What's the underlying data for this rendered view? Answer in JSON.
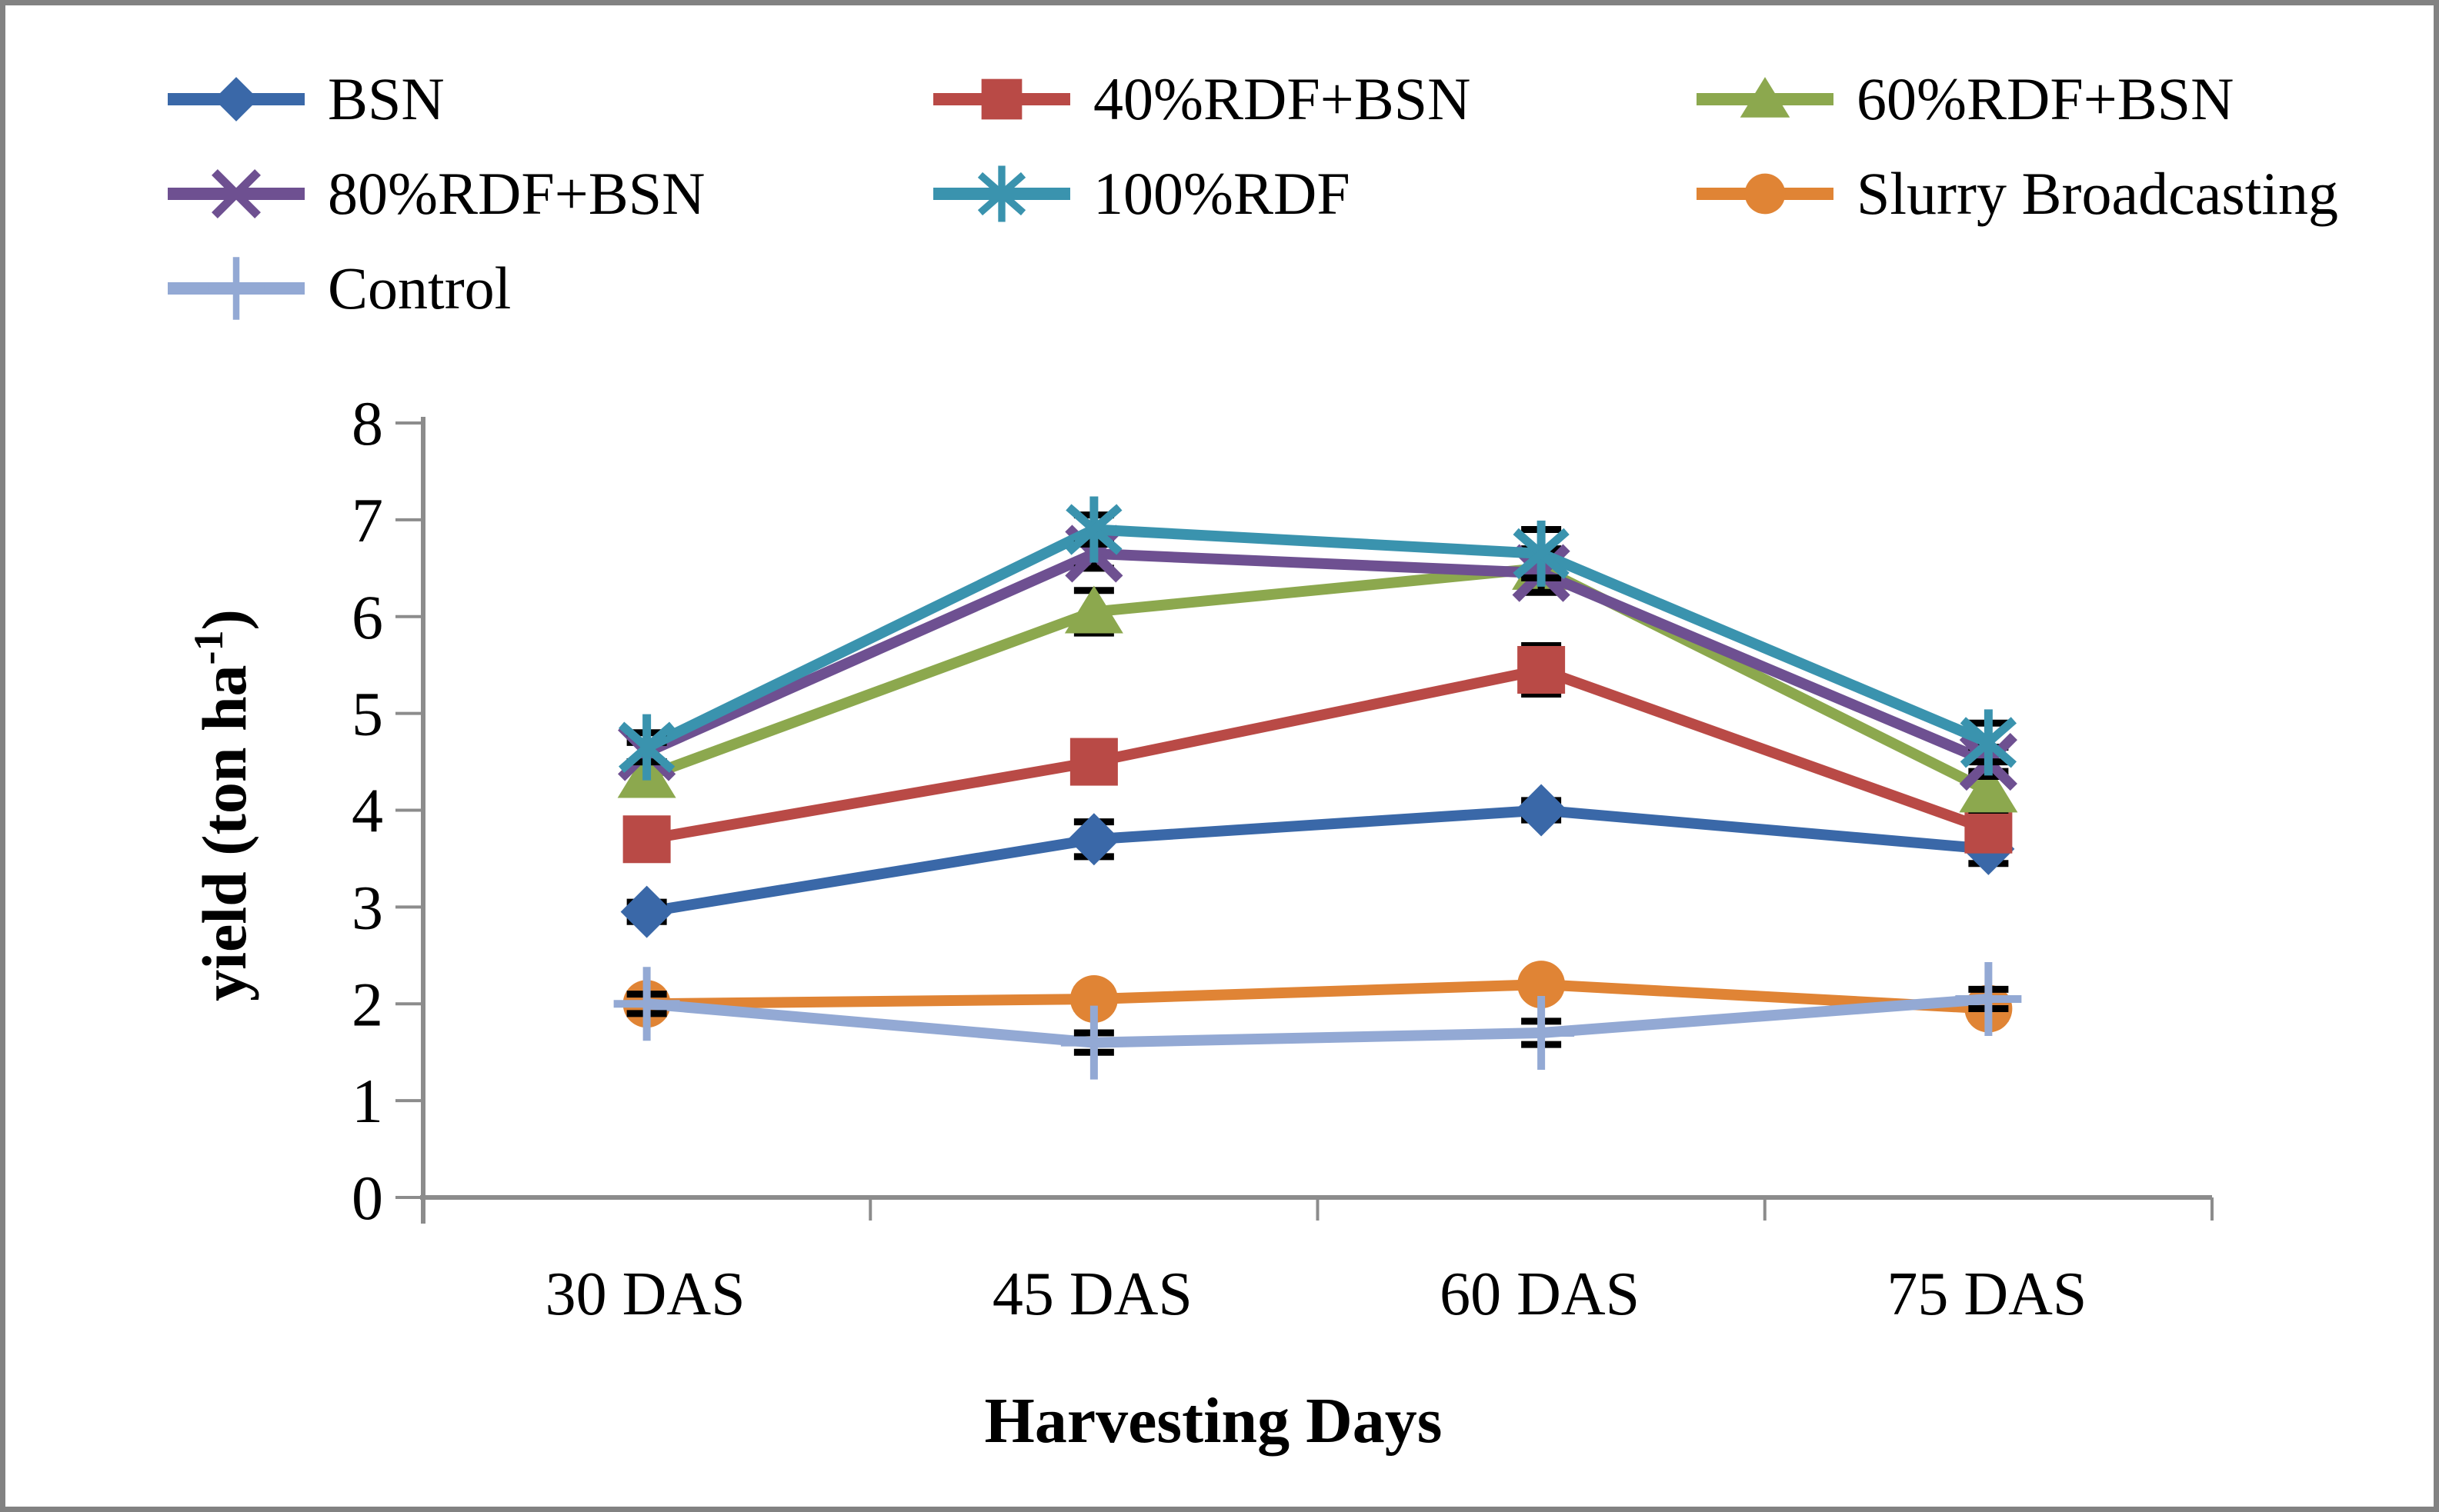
{
  "chart_data": {
    "type": "line",
    "title": "",
    "xlabel": "Harvesting Days",
    "ylabel": "yield (ton ha⁻¹)",
    "ylabel_parts": {
      "prefix": "yield (ton ha",
      "sup": "-1",
      "suffix": ")"
    },
    "categories": [
      "30 DAS",
      "45 DAS",
      "60 DAS",
      "75 DAS"
    ],
    "y_ticks": [
      0,
      1,
      2,
      3,
      4,
      5,
      6,
      7,
      8
    ],
    "y_tick_labels": [
      "0",
      "1",
      "2",
      "3",
      "4",
      "5",
      "6",
      "7",
      "8"
    ],
    "ylim": [
      0,
      8
    ],
    "grid": "off",
    "legend_position": "top-left, 3 columns",
    "axis_color": "#8c8c8c",
    "error_bar_color": "#000000",
    "series": [
      {
        "name": "BSN",
        "color": "#3A68A8",
        "marker": "diamond",
        "values": [
          2.95,
          3.7,
          4.0,
          3.6
        ],
        "errors": [
          0.1,
          0.18,
          0.1,
          0.15
        ]
      },
      {
        "name": "40%RDF+BSN",
        "color": "#B94A46",
        "marker": "square",
        "values": [
          3.7,
          4.5,
          5.45,
          3.8
        ],
        "errors": [
          0.1,
          0.15,
          0.25,
          0.15
        ]
      },
      {
        "name": "60%RDF+BSN",
        "color": "#8CA84E",
        "marker": "triangle",
        "values": [
          4.35,
          6.05,
          6.5,
          4.2
        ],
        "errors": [
          0.15,
          0.22,
          0.2,
          0.2
        ]
      },
      {
        "name": "80%RDF+BSN",
        "color": "#6E5091",
        "marker": "x",
        "values": [
          4.6,
          6.65,
          6.45,
          4.5
        ],
        "errors": [
          0.1,
          0.15,
          0.2,
          0.15
        ]
      },
      {
        "name": "100%RDF",
        "color": "#3A93AE",
        "marker": "asterisk",
        "values": [
          4.65,
          6.9,
          6.65,
          4.7
        ],
        "errors": [
          0.15,
          0.15,
          0.25,
          0.2
        ]
      },
      {
        "name": "Slurry Broadcasting",
        "color": "#E08435",
        "marker": "circle",
        "values": [
          2.0,
          2.05,
          2.2,
          1.95
        ],
        "errors": [
          0.1,
          0.1,
          0.1,
          0.1
        ]
      },
      {
        "name": "Control",
        "color": "#93A9D4",
        "marker": "plus",
        "values": [
          2.0,
          1.6,
          1.7,
          2.05
        ],
        "errors": [
          0.1,
          0.1,
          0.12,
          0.1
        ]
      }
    ]
  }
}
